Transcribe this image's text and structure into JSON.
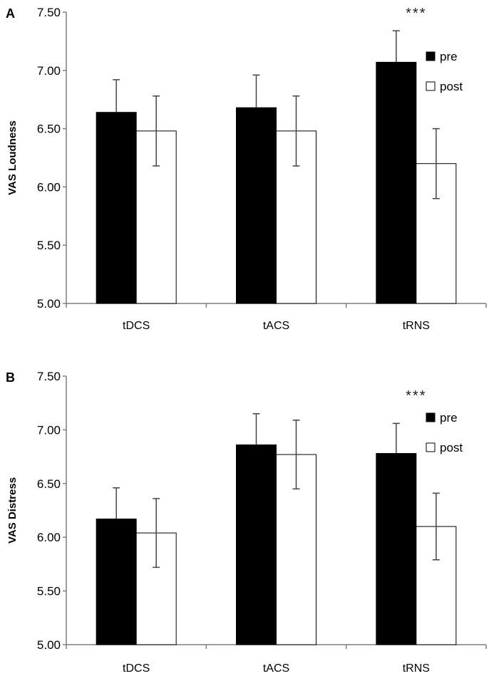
{
  "chart_data": [
    {
      "type": "bar",
      "panel_label": "A",
      "ylabel": "VAS Loudness",
      "ylim": [
        5.0,
        7.5
      ],
      "yticks": [
        "5.00",
        "5.50",
        "6.00",
        "6.50",
        "7.00",
        "7.50"
      ],
      "categories": [
        "tDCS",
        "tACS",
        "tRNS"
      ],
      "series": [
        {
          "name": "pre",
          "color": "#000000",
          "values": [
            6.64,
            6.68,
            7.07
          ],
          "errors": [
            0.28,
            0.28,
            0.27
          ]
        },
        {
          "name": "post",
          "color": "#ffffff",
          "values": [
            6.48,
            6.48,
            6.2
          ],
          "errors": [
            0.3,
            0.3,
            0.3
          ]
        }
      ],
      "annotations": [
        {
          "category": "tRNS",
          "text": "***"
        }
      ],
      "legend": "right",
      "grid": false
    },
    {
      "type": "bar",
      "panel_label": "B",
      "ylabel": "VAS Distress",
      "ylim": [
        5.0,
        7.5
      ],
      "yticks": [
        "5.00",
        "5.50",
        "6.00",
        "6.50",
        "7.00",
        "7.50"
      ],
      "categories": [
        "tDCS",
        "tACS",
        "tRNS"
      ],
      "series": [
        {
          "name": "pre",
          "color": "#000000",
          "values": [
            6.17,
            6.86,
            6.78
          ],
          "errors": [
            0.29,
            0.29,
            0.28
          ]
        },
        {
          "name": "post",
          "color": "#ffffff",
          "values": [
            6.04,
            6.77,
            6.1
          ],
          "errors": [
            0.32,
            0.32,
            0.31
          ]
        }
      ],
      "annotations": [
        {
          "category": "tRNS",
          "text": "***"
        }
      ],
      "legend": "right",
      "grid": false
    }
  ]
}
